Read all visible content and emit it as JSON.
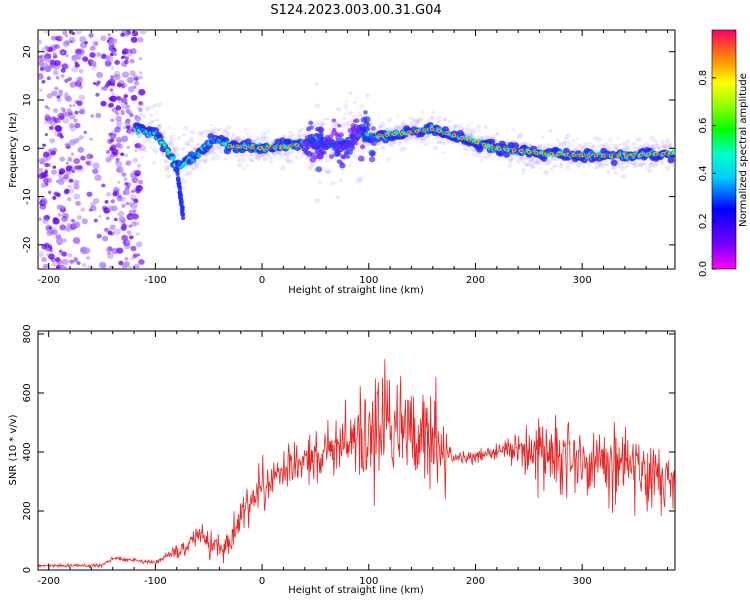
{
  "title": "S124.2023.003.00.31.G04",
  "chart_data": [
    {
      "type": "heatmap",
      "xlabel": "Height of straight line (km)",
      "ylabel": "Frequency (Hz)",
      "xlim": [
        -210,
        387
      ],
      "ylim": [
        -25,
        24.5
      ],
      "x_ticks": [
        -200,
        -100,
        0,
        100,
        200,
        300
      ],
      "y_ticks": [
        -20,
        -10,
        0,
        10,
        20
      ],
      "colorbar": {
        "label": "Normalized spectral amplitude",
        "range": [
          0,
          1
        ],
        "ticks": [
          0.0,
          0.2,
          0.4,
          0.6,
          0.8
        ]
      },
      "ridge": {
        "x": [
          -115,
          -100,
          -90,
          -80,
          -72,
          -60,
          -45,
          -30,
          0,
          30,
          50,
          60,
          75,
          90,
          100,
          130,
          160,
          190,
          220,
          260,
          300,
          340,
          387
        ],
        "y": [
          4,
          3,
          0,
          -4,
          -3,
          -1,
          2,
          0.5,
          0,
          0.5,
          1.5,
          1,
          0,
          3,
          2.5,
          3,
          4,
          2,
          0,
          -1,
          -1.5,
          -1.5,
          -1
        ]
      }
    },
    {
      "type": "line",
      "xlabel": "Height of straight line (km)",
      "ylabel": "SNR (10 * v/v)",
      "xlim": [
        -210,
        387
      ],
      "ylim": [
        0,
        810
      ],
      "x_ticks": [
        -200,
        -100,
        0,
        100,
        200,
        300
      ],
      "y_ticks": [
        0,
        200,
        400,
        600,
        800
      ],
      "color": "#ee2222",
      "envelope": {
        "x": [
          -210,
          -150,
          -140,
          -100,
          -90,
          -70,
          -60,
          -50,
          -35,
          -20,
          0,
          30,
          60,
          90,
          95,
          105,
          115,
          135,
          150,
          165,
          180,
          200,
          210,
          230,
          270,
          300,
          330,
          360,
          387
        ],
        "y": [
          15,
          15,
          40,
          25,
          45,
          80,
          130,
          90,
          70,
          190,
          280,
          360,
          400,
          460,
          470,
          490,
          480,
          460,
          470,
          420,
          385,
          380,
          390,
          410,
          390,
          380,
          360,
          330,
          320
        ]
      },
      "noise_amplitude": {
        "x": [
          -210,
          -100,
          -60,
          -40,
          0,
          80,
          95,
          165,
          180,
          230,
          250,
          387
        ],
        "y": [
          8,
          12,
          60,
          80,
          120,
          140,
          300,
          300,
          30,
          60,
          180,
          180
        ]
      },
      "peak_max": 800
    }
  ]
}
